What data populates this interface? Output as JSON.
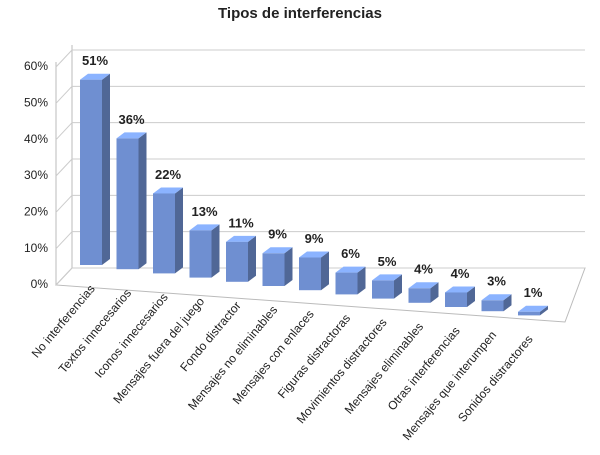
{
  "chart_data": {
    "type": "bar3d",
    "title": "Tipos de interferencias",
    "categories": [
      "No interferencias",
      "Textos innecesarios",
      "Iconos innecesarios",
      "Mensajes fuera del juego",
      "Fondo distractor",
      "Mensajes no eliminables",
      "Mensajes con enlaces",
      "Figuras distractoras",
      "Movimientos distractores",
      "Mensajes eliminables",
      "Otras interferencias",
      "Mensajes que interumpen",
      "Sonidos distractores"
    ],
    "values": [
      51,
      36,
      22,
      13,
      11,
      9,
      9,
      6,
      5,
      4,
      4,
      3,
      1
    ],
    "value_labels": [
      "51%",
      "36%",
      "22%",
      "13%",
      "11%",
      "9%",
      "9%",
      "6%",
      "5%",
      "4%",
      "4%",
      "3%",
      "1%"
    ],
    "color": "#6f8fd1",
    "ylim": [
      0,
      60
    ],
    "yticks": [
      {
        "value": 0,
        "label": "0%"
      },
      {
        "value": 10,
        "label": "10%"
      },
      {
        "value": 20,
        "label": "20%"
      },
      {
        "value": 30,
        "label": "30%"
      },
      {
        "value": 40,
        "label": "40%"
      },
      {
        "value": 50,
        "label": "50%"
      },
      {
        "value": 60,
        "label": "60%"
      }
    ],
    "grid": true
  }
}
